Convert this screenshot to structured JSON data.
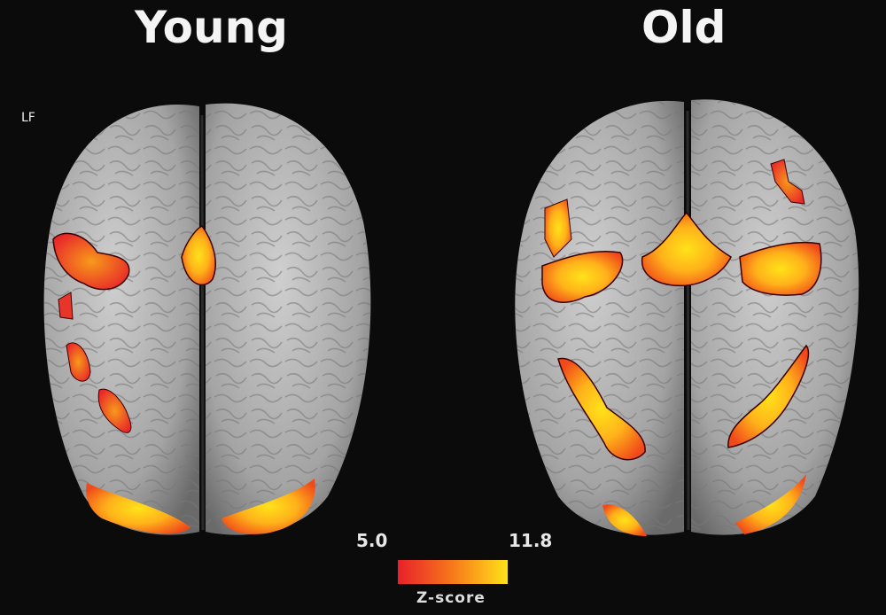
{
  "panels": [
    {
      "title": "Young",
      "orientation_label": "LF"
    },
    {
      "title": "Old"
    }
  ],
  "colorbar": {
    "min_label": "5.0",
    "max_label": "11.8",
    "title": "Z-score",
    "colors": [
      "#e8202a",
      "#f7791a",
      "#ffe21a"
    ]
  },
  "colors": {
    "background": "#0b0b0b",
    "cortex": "#a9a9a9"
  }
}
